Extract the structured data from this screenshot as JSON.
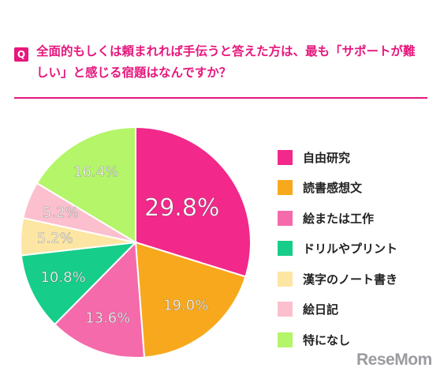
{
  "question": {
    "badge": "Q",
    "text": "全面的もしくは頼まれれば手伝うと答えた方は、最も「サポートが難しい」と感じる宿題はなんですか？"
  },
  "chart_data": {
    "type": "pie",
    "categories": [
      "自由研究",
      "読書感想文",
      "絵または工作",
      "ドリルやプリント",
      "漢字のノート書き",
      "絵日記",
      "特になし"
    ],
    "values": [
      29.8,
      19.0,
      13.6,
      10.8,
      5.2,
      5.2,
      16.4
    ],
    "value_labels": [
      "29.8%",
      "19.0%",
      "13.6%",
      "10.8%",
      "5.2%",
      "5.2%",
      "16.4%"
    ],
    "colors": [
      "#f2288a",
      "#f8a81c",
      "#f56aaa",
      "#16cd8a",
      "#fde6a3",
      "#fbbfce",
      "#b4f56a"
    ],
    "legend_position": "right"
  },
  "branding": {
    "logo": "ReseMom"
  }
}
